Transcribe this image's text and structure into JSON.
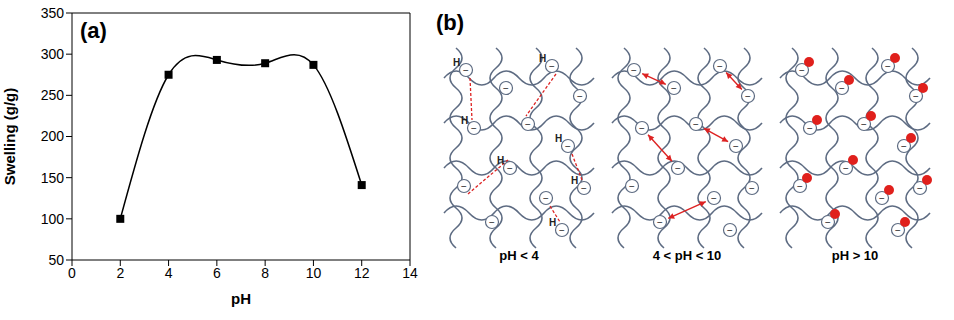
{
  "chart_data": {
    "type": "line",
    "title": "(a)",
    "x_label": "pH",
    "y_label": "Swelling (g/g)",
    "x": [
      2,
      4,
      6,
      8,
      10,
      12
    ],
    "values": [
      100,
      275,
      293,
      289,
      287,
      141
    ],
    "color": "#000000",
    "marker": "square",
    "xlim": [
      0,
      14
    ],
    "xticks": [
      0,
      2,
      4,
      6,
      8,
      10,
      12,
      14
    ],
    "ylim": [
      50,
      350
    ],
    "yticks": [
      50,
      100,
      150,
      200,
      250,
      300,
      350
    ],
    "grid": false
  },
  "diagram": {
    "label": "(b)",
    "hydrogen": "H",
    "charge": "−",
    "captions": [
      "pH < 4",
      "4 < pH < 10",
      "pH > 10"
    ]
  }
}
